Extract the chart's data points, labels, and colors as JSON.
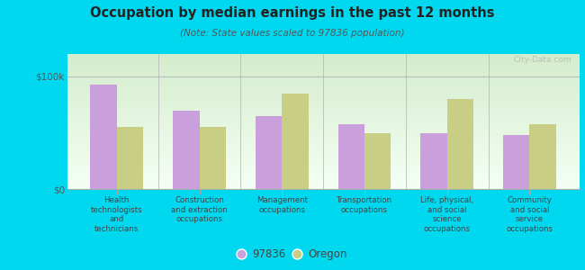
{
  "title": "Occupation by median earnings in the past 12 months",
  "subtitle": "(Note: State values scaled to 97836 population)",
  "categories": [
    "Health\ntechnologists\nand\ntechnicians",
    "Construction\nand extraction\noccupations",
    "Management\noccupations",
    "Transportation\noccupations",
    "Life, physical,\nand social\nscience\noccupations",
    "Community\nand social\nservice\noccupations"
  ],
  "values_97836": [
    93000,
    70000,
    65000,
    58000,
    50000,
    48000
  ],
  "values_oregon": [
    55000,
    55000,
    85000,
    50000,
    80000,
    58000
  ],
  "color_97836": "#c9a0dc",
  "color_oregon": "#c8cf84",
  "bar_width": 0.32,
  "ylim": [
    0,
    120000
  ],
  "yticks": [
    0,
    100000
  ],
  "ytick_labels": [
    "$0",
    "$100k"
  ],
  "outer_background": "#00d8ef",
  "legend_labels": [
    "97836",
    "Oregon"
  ],
  "watermark": "City-Data.com"
}
